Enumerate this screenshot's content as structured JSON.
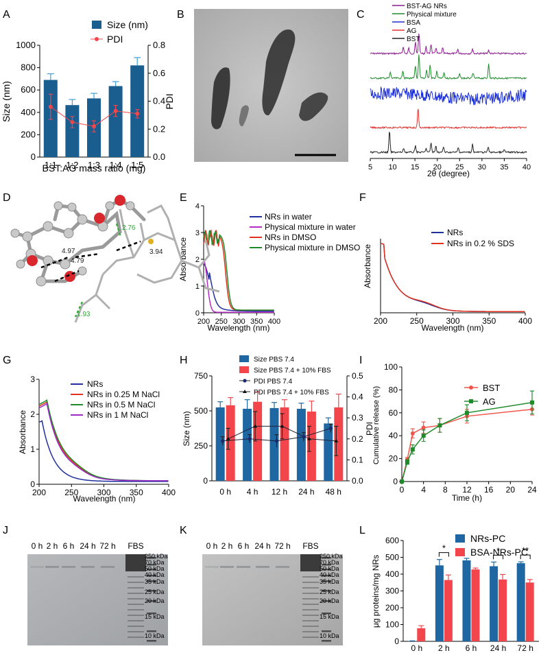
{
  "panels": {
    "A": "A",
    "B": "B",
    "C": "C",
    "D": "D",
    "E": "E",
    "F": "F",
    "G": "G",
    "H": "H",
    "I": "I",
    "J": "J",
    "K": "K",
    "L": "L"
  },
  "colors": {
    "blue": "#1a5e8f",
    "red": "#f2464c",
    "darkblue": "#1f2f9e",
    "purple": "#8b1a8b",
    "green": "#1e8a2a",
    "tealblue": "#1e67a3"
  },
  "molecule": {
    "distances": [
      "2.76",
      "3.94",
      "4.97",
      "4.79",
      "1.93"
    ]
  },
  "gels": {
    "J": {
      "lanes": [
        "0 h",
        "2 h",
        "6 h",
        "24 h",
        "72 h",
        "FBS"
      ]
    },
    "K": {
      "lanes": [
        "0 h",
        "2 h",
        "6 h",
        "24 h",
        "72 h",
        "FBS"
      ]
    },
    "markers": [
      "250 kDa",
      "70 kDa",
      "50 kDa",
      "40 kDa",
      "35 kDa",
      "25 kDa",
      "20 kDa",
      "15 kDa",
      "10 kDa"
    ]
  },
  "chart_data": [
    {
      "id": "A",
      "type": "bar",
      "categories": [
        "1:1",
        "1:2",
        "1:3",
        "1:4",
        "1:5"
      ],
      "series": [
        {
          "name": "Size (nm)",
          "values": [
            690,
            465,
            525,
            635,
            820
          ],
          "errors": [
            55,
            50,
            45,
            40,
            70
          ]
        },
        {
          "name": "PDI",
          "axis": "right",
          "values": [
            0.36,
            0.25,
            0.22,
            0.33,
            0.31
          ],
          "errors": [
            0.09,
            0.04,
            0.04,
            0.04,
            0.03
          ]
        }
      ],
      "xlabel": "BST:AG mass ratio (mg)",
      "ylabel": "Size (nm)",
      "y2label": "PDI",
      "ylim": [
        0,
        1000
      ],
      "yticks": [
        "0",
        "200",
        "400",
        "600",
        "800",
        "1000"
      ],
      "y2lim": [
        0,
        0.8
      ],
      "y2ticks": [
        "0.0",
        "0.2",
        "0.4",
        "0.6",
        "0.8"
      ]
    },
    {
      "id": "C",
      "type": "line",
      "series": [
        {
          "name": "BST-AG NRs"
        },
        {
          "name": "Physical mixture"
        },
        {
          "name": "BSA"
        },
        {
          "name": "AG"
        },
        {
          "name": "BST"
        }
      ],
      "xlabel": "2θ (degree)",
      "xlim": [
        5,
        40
      ],
      "xticks": [
        "5",
        "10",
        "15",
        "20",
        "25",
        "30",
        "35",
        "40"
      ]
    },
    {
      "id": "E",
      "type": "line",
      "series": [
        {
          "name": "NRs in water"
        },
        {
          "name": "Physical mixture in water"
        },
        {
          "name": "NRs in DMSO"
        },
        {
          "name": "Physical mixture in DMSO"
        }
      ],
      "xlabel": "Wavelength (nm)",
      "ylabel": "Absorbance",
      "xlim": [
        200,
        400
      ],
      "ylim": [
        0,
        4
      ],
      "xticks": [
        "200",
        "250",
        "300",
        "350",
        "400"
      ],
      "yticks": [
        "0",
        "1",
        "2",
        "3",
        "4"
      ]
    },
    {
      "id": "F",
      "type": "line",
      "series": [
        {
          "name": "NRs"
        },
        {
          "name": "NRs in 0.2 % SDS"
        }
      ],
      "xlabel": "Wavelength (nm)",
      "ylabel": "Absorbance",
      "xlim": [
        200,
        400
      ],
      "xticks": [
        "200",
        "250",
        "300",
        "350",
        "400"
      ]
    },
    {
      "id": "G",
      "type": "line",
      "series": [
        {
          "name": "NRs"
        },
        {
          "name": "NRs in 0.25 M NaCl"
        },
        {
          "name": "NRs in 0.5 M NaCl"
        },
        {
          "name": "NRs in 1 M NaCl"
        }
      ],
      "xlabel": "Wavelength (nm)",
      "ylabel": "Absorbance",
      "xlim": [
        200,
        400
      ],
      "ylim": [
        0,
        3
      ],
      "xticks": [
        "200",
        "250",
        "300",
        "350",
        "400"
      ],
      "yticks": [
        "0",
        "1",
        "2",
        "3"
      ]
    },
    {
      "id": "H",
      "type": "bar",
      "categories": [
        "0 h",
        "4 h",
        "12 h",
        "24 h",
        "48 h"
      ],
      "series": [
        {
          "name": "Size PBS 7.4",
          "values": [
            525,
            515,
            520,
            515,
            410
          ],
          "errors": [
            40,
            65,
            40,
            40,
            40
          ]
        },
        {
          "name": "Size PBS 7.4 + 10%  FBS",
          "values": [
            540,
            565,
            525,
            495,
            525
          ],
          "errors": [
            55,
            70,
            55,
            75,
            95
          ]
        },
        {
          "name": "PDI PBS 7.4",
          "axis": "right",
          "values": [
            0.19,
            0.2,
            0.19,
            0.21,
            0.25
          ],
          "errors": [
            0.02,
            0.02,
            0.03,
            0.02,
            0.02
          ]
        },
        {
          "name": "PDI PBS 7.4 + 10%  FBS",
          "axis": "right",
          "values": [
            0.2,
            0.26,
            0.26,
            0.2,
            0.19
          ],
          "errors": [
            0.05,
            0.07,
            0.06,
            0.06,
            0.07
          ]
        }
      ],
      "ylabel": "Size (nm)",
      "y2label": "PDI",
      "ylim": [
        0,
        750
      ],
      "yticks": [
        "0",
        "250",
        "500",
        "750"
      ],
      "y2lim": [
        0,
        0.5
      ],
      "y2ticks": [
        "0.0",
        "0.1",
        "0.2",
        "0.3",
        "0.4",
        "0.5"
      ]
    },
    {
      "id": "I",
      "type": "line",
      "series": [
        {
          "name": "BST",
          "x": [
            0,
            1,
            2,
            4,
            7,
            12,
            24
          ],
          "values": [
            0,
            19,
            42,
            47,
            49,
            57,
            63
          ],
          "errors": [
            1,
            2,
            4,
            5,
            6,
            6,
            5
          ]
        },
        {
          "name": "AG",
          "x": [
            0,
            1,
            2,
            4,
            7,
            12,
            24
          ],
          "values": [
            0,
            17,
            28,
            40,
            49,
            60,
            69
          ],
          "errors": [
            1,
            2,
            4,
            5,
            6,
            7,
            10
          ]
        }
      ],
      "xlabel": "Time (h)",
      "ylabel": "Cumulative release (%)",
      "xlim": [
        0,
        24
      ],
      "ylim": [
        0,
        100
      ],
      "xticks": [
        "0",
        "4",
        "8",
        "12",
        "16",
        "20",
        "24"
      ],
      "yticks": [
        "0",
        "20",
        "40",
        "60",
        "80",
        "100"
      ]
    },
    {
      "id": "L",
      "type": "bar",
      "categories": [
        "0 h",
        "2 h",
        "6 h",
        "24 h",
        "72 h"
      ],
      "series": [
        {
          "name": "NRs-PC",
          "values": [
            2,
            452,
            482,
            447,
            465
          ],
          "errors": [
            1,
            35,
            12,
            25,
            8
          ]
        },
        {
          "name": "BSA-NRs-PC",
          "values": [
            78,
            365,
            428,
            368,
            350
          ],
          "errors": [
            15,
            30,
            8,
            30,
            18
          ]
        }
      ],
      "ylabel": "μg proteins/mg NRs",
      "ylim": [
        0,
        600
      ],
      "yticks": [
        "0",
        "100",
        "200",
        "300",
        "400",
        "500",
        "600"
      ],
      "significance": [
        "*",
        "*",
        "**"
      ]
    }
  ]
}
